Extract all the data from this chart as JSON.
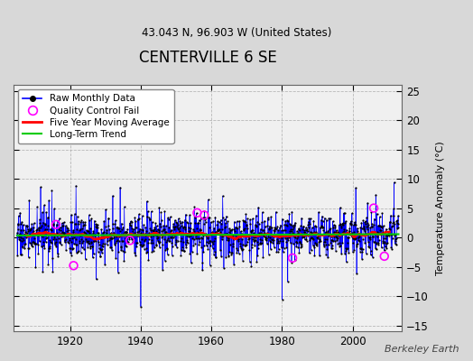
{
  "title": "CENTERVILLE 6 SE",
  "subtitle": "43.043 N, 96.903 W (United States)",
  "ylabel": "Temperature Anomaly (°C)",
  "watermark": "Berkeley Earth",
  "year_start": 1905,
  "year_end": 2013,
  "ylim": [
    -16,
    26
  ],
  "yticks": [
    -15,
    -10,
    -5,
    0,
    5,
    10,
    15,
    20,
    25
  ],
  "xticks": [
    1920,
    1940,
    1960,
    1980,
    2000
  ],
  "bg_color": "#d8d8d8",
  "plot_bg": "#f0f0f0",
  "line_color": "#0000ff",
  "moving_avg_color": "#ff0000",
  "trend_color": "#00cc00",
  "qc_color": "#ff00ff",
  "marker_color": "#000000",
  "legend_entries": [
    "Raw Monthly Data",
    "Quality Control Fail",
    "Five Year Moving Average",
    "Long-Term Trend"
  ]
}
